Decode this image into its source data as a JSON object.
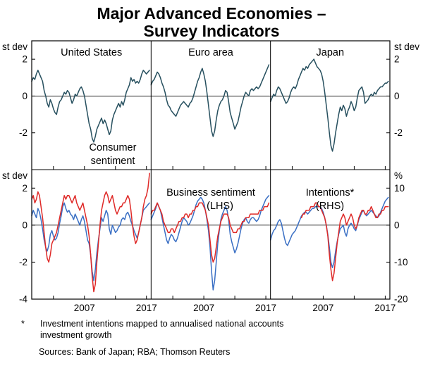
{
  "title": {
    "line1": "Major Advanced Economies –",
    "line2": "Survey Indicators"
  },
  "footnote": {
    "marker": "*",
    "line1": "Investment intentions mapped to annualised national accounts",
    "line2": "investment growth"
  },
  "sources": "Sources: Bank of Japan; RBA; Thomson Reuters",
  "chart_data": {
    "type": "line",
    "layout": {
      "rows": 2,
      "cols": 3,
      "grid": "off",
      "zero_line": "on"
    },
    "columns": [
      "United States",
      "Euro area",
      "Japan"
    ],
    "colors": {
      "consumer": "#27505f",
      "business": "#3a6fc4",
      "intentions": "#df2a28",
      "axis": "#000000"
    },
    "axes": {
      "x": {
        "range": [
          1999,
          2018.25
        ],
        "labeled_years": [
          2007,
          2017
        ],
        "minor_ticks": [
          2002,
          2007,
          2012,
          2017
        ]
      },
      "top": {
        "left_unit": "st dev",
        "right_unit": "st dev",
        "ylim": [
          -4,
          3
        ],
        "ticks": [
          2,
          0,
          -2
        ]
      },
      "bottom": {
        "left_unit": "st dev",
        "right_unit": "%",
        "ylim_left": [
          -4,
          3
        ],
        "left_ticks": [
          2,
          0,
          -2,
          -4
        ],
        "ylim_right": [
          -20,
          15
        ],
        "right_ticks": [
          10,
          0,
          -10,
          -20
        ]
      }
    },
    "annotations": {
      "consumer": {
        "line1": "Consumer",
        "line2": "sentiment"
      },
      "business": {
        "line1": "Business sentiment",
        "line2": "(LHS)"
      },
      "intentions": {
        "line1": "Intentions*",
        "line2": "(RHS)"
      }
    },
    "x_start": 1999,
    "x_step": 0.25,
    "series": [
      {
        "id": "us-consumer-sentiment",
        "panel": 0,
        "row": "top",
        "axis": "left",
        "color": "consumer",
        "values": [
          0.8,
          1.0,
          0.9,
          1.2,
          1.4,
          1.2,
          1.0,
          0.8,
          0.3,
          0.0,
          -0.4,
          -0.6,
          -0.2,
          -0.4,
          -0.7,
          -0.9,
          -1.0,
          -0.6,
          -0.3,
          -0.2,
          0.0,
          0.2,
          0.1,
          0.3,
          0.2,
          -0.1,
          -0.4,
          -0.2,
          0.1,
          0.0,
          0.2,
          0.4,
          0.5,
          0.3,
          0.0,
          -0.5,
          -1.0,
          -1.5,
          -1.8,
          -2.3,
          -2.5,
          -2.2,
          -1.8,
          -1.6,
          -1.4,
          -1.2,
          -1.5,
          -1.3,
          -1.5,
          -1.8,
          -2.1,
          -1.9,
          -1.3,
          -1.0,
          -0.8,
          -0.6,
          -0.4,
          -0.6,
          -0.3,
          -0.5,
          -0.2,
          0.2,
          0.4,
          0.6,
          1.0,
          0.8,
          0.9,
          0.7,
          0.8,
          0.7,
          0.9,
          1.2,
          1.4,
          1.3,
          1.2,
          1.3,
          1.4
        ]
      },
      {
        "id": "euro-consumer-sentiment",
        "panel": 1,
        "row": "top",
        "axis": "left",
        "color": "consumer",
        "values": [
          0.6,
          0.8,
          0.9,
          1.1,
          1.3,
          1.2,
          1.0,
          0.7,
          0.5,
          0.2,
          -0.2,
          -0.5,
          -0.6,
          -0.8,
          -0.9,
          -1.0,
          -1.1,
          -0.9,
          -0.7,
          -0.5,
          -0.4,
          -0.3,
          -0.4,
          -0.5,
          -0.6,
          -0.4,
          -0.3,
          -0.1,
          0.2,
          0.5,
          0.8,
          1.0,
          1.3,
          1.5,
          1.2,
          0.8,
          0.2,
          -0.5,
          -1.2,
          -1.9,
          -2.2,
          -1.9,
          -1.3,
          -0.8,
          -0.5,
          -0.3,
          -0.2,
          0.0,
          0.3,
          0.2,
          -0.3,
          -0.9,
          -1.2,
          -1.5,
          -1.8,
          -1.6,
          -1.4,
          -1.0,
          -0.6,
          -0.3,
          0.0,
          0.2,
          0.1,
          0.0,
          0.3,
          0.4,
          0.3,
          0.4,
          0.5,
          0.4,
          0.5,
          0.7,
          0.9,
          1.1,
          1.3,
          1.5,
          1.7
        ]
      },
      {
        "id": "japan-consumer-sentiment",
        "panel": 2,
        "row": "top",
        "axis": "left",
        "color": "consumer",
        "values": [
          -0.3,
          -0.1,
          0.1,
          0.0,
          0.3,
          0.5,
          0.4,
          0.2,
          0.0,
          -0.2,
          -0.4,
          -0.3,
          -0.1,
          0.2,
          0.4,
          0.5,
          0.4,
          0.6,
          0.9,
          1.1,
          1.3,
          1.5,
          1.4,
          1.6,
          1.5,
          1.7,
          1.8,
          1.9,
          2.0,
          1.8,
          1.6,
          1.5,
          1.4,
          1.2,
          0.8,
          0.2,
          -0.5,
          -1.2,
          -2.0,
          -2.7,
          -3.0,
          -2.6,
          -2.0,
          -1.5,
          -1.0,
          -0.6,
          -0.8,
          -0.5,
          -0.7,
          -1.1,
          -0.8,
          -0.6,
          -0.3,
          -0.5,
          -0.8,
          -0.6,
          -0.1,
          0.3,
          0.4,
          0.5,
          0.2,
          -0.4,
          -0.3,
          -0.2,
          0.0,
          0.1,
          0.0,
          0.2,
          0.1,
          0.3,
          0.4,
          0.5,
          0.5,
          0.6,
          0.7,
          0.7,
          0.8
        ]
      },
      {
        "id": "us-business-sentiment",
        "panel": 0,
        "row": "bottom",
        "axis": "left",
        "color": "business",
        "values": [
          0.5,
          0.8,
          0.6,
          0.4,
          0.9,
          0.7,
          0.3,
          -0.2,
          -0.8,
          -1.2,
          -1.4,
          -1.1,
          -0.5,
          -0.3,
          -0.6,
          -0.8,
          -0.7,
          -0.4,
          0.1,
          0.5,
          1.0,
          1.2,
          0.9,
          0.7,
          0.8,
          0.6,
          0.5,
          0.3,
          0.6,
          0.4,
          0.2,
          0.0,
          0.3,
          0.5,
          0.2,
          -0.3,
          -0.8,
          -1.0,
          -1.6,
          -2.5,
          -3.0,
          -2.4,
          -1.5,
          -0.8,
          -0.2,
          0.4,
          0.2,
          0.5,
          0.8,
          0.6,
          -0.2,
          -0.5,
          0.0,
          -0.2,
          -0.4,
          -0.3,
          -0.1,
          0.0,
          0.3,
          0.4,
          0.3,
          0.6,
          0.7,
          0.5,
          0.2,
          0.0,
          -0.3,
          -0.5,
          -0.7,
          -0.4,
          0.0,
          0.4,
          0.8,
          0.9,
          1.0,
          1.1,
          1.2
        ]
      },
      {
        "id": "us-investment-intentions",
        "panel": 0,
        "row": "bottom",
        "axis": "right",
        "color": "intentions",
        "values": [
          7,
          8,
          6,
          7,
          9,
          8,
          5,
          2,
          -2,
          -6,
          -9,
          -10,
          -8,
          -5,
          -4,
          -3,
          -2,
          0,
          2,
          4,
          6,
          8,
          7,
          8,
          8,
          7,
          6,
          7,
          8,
          6,
          5,
          4,
          5,
          6,
          4,
          2,
          0,
          -3,
          -8,
          -14,
          -18,
          -16,
          -10,
          -5,
          0,
          4,
          6,
          8,
          9,
          8,
          6,
          7,
          8,
          6,
          4,
          3,
          4,
          5,
          5,
          6,
          6,
          7,
          8,
          7,
          4,
          0,
          -3,
          -5,
          -4,
          -2,
          0,
          2,
          5,
          7,
          8,
          10,
          14
        ]
      },
      {
        "id": "euro-business-sentiment",
        "panel": 1,
        "row": "bottom",
        "axis": "left",
        "color": "business",
        "values": [
          0.3,
          0.5,
          0.7,
          0.9,
          1.2,
          1.0,
          0.8,
          0.4,
          0.0,
          -0.4,
          -0.8,
          -1.0,
          -0.7,
          -0.5,
          -0.6,
          -0.8,
          -0.9,
          -0.7,
          -0.4,
          -0.1,
          0.2,
          0.4,
          0.3,
          0.2,
          0.0,
          0.1,
          0.3,
          0.5,
          0.8,
          1.1,
          1.3,
          1.4,
          1.5,
          1.4,
          1.2,
          0.8,
          0.3,
          -0.3,
          -1.2,
          -2.5,
          -3.5,
          -3.0,
          -2.0,
          -1.0,
          -0.3,
          0.3,
          0.6,
          0.8,
          1.0,
          0.8,
          0.3,
          -0.5,
          -0.9,
          -1.2,
          -1.5,
          -1.3,
          -1.0,
          -0.6,
          -0.2,
          0.1,
          0.3,
          0.4,
          0.2,
          0.1,
          0.3,
          0.4,
          0.4,
          0.3,
          0.2,
          0.3,
          0.5,
          0.8,
          1.0,
          1.2,
          1.4,
          1.5,
          1.6
        ]
      },
      {
        "id": "euro-investment-intentions",
        "panel": 1,
        "row": "bottom",
        "axis": "right",
        "color": "intentions",
        "values": [
          3,
          4,
          4,
          5,
          6,
          5,
          4,
          3,
          1,
          0,
          -1,
          -2,
          -2,
          -1,
          -1,
          -2,
          -1,
          0,
          1,
          1,
          2,
          2,
          3,
          3,
          2,
          3,
          3,
          4,
          4,
          5,
          5,
          6,
          6,
          6,
          5,
          4,
          2,
          0,
          -4,
          -8,
          -10,
          -9,
          -6,
          -3,
          -1,
          1,
          2,
          3,
          3,
          3,
          2,
          0,
          -1,
          -2,
          -2,
          -2,
          -1,
          -1,
          0,
          1,
          1,
          2,
          2,
          2,
          3,
          3,
          3,
          3,
          3,
          3,
          4,
          4,
          4,
          5,
          5,
          5,
          6
        ]
      },
      {
        "id": "japan-business-sentiment",
        "panel": 2,
        "row": "bottom",
        "axis": "left",
        "color": "business",
        "values": [
          -0.8,
          -0.5,
          -0.3,
          -0.2,
          0.0,
          0.2,
          0.3,
          0.1,
          -0.3,
          -0.7,
          -1.0,
          -1.1,
          -0.9,
          -0.7,
          -0.5,
          -0.4,
          -0.3,
          -0.1,
          0.1,
          0.3,
          0.5,
          0.6,
          0.7,
          0.7,
          0.6,
          0.7,
          0.8,
          0.9,
          0.9,
          1.0,
          1.0,
          1.0,
          1.0,
          0.9,
          0.7,
          0.4,
          0.0,
          -0.5,
          -1.2,
          -2.0,
          -2.3,
          -2.0,
          -1.4,
          -0.9,
          -0.5,
          -0.2,
          -0.1,
          0.0,
          -0.4,
          -0.6,
          -0.2,
          0.0,
          0.1,
          0.0,
          -0.2,
          -0.3,
          0.0,
          0.3,
          0.5,
          0.7,
          0.8,
          0.6,
          0.5,
          0.6,
          0.7,
          0.8,
          0.7,
          0.6,
          0.5,
          0.4,
          0.5,
          0.7,
          0.9,
          1.1,
          1.3,
          1.4,
          1.5
        ]
      },
      {
        "id": "japan-investment-intentions",
        "panel": 2,
        "row": "bottom",
        "axis": "right",
        "color": "intentions",
        "values": [
          null,
          null,
          null,
          null,
          null,
          null,
          null,
          null,
          null,
          null,
          null,
          null,
          null,
          null,
          null,
          null,
          null,
          null,
          null,
          null,
          2,
          3,
          3,
          4,
          4,
          4,
          5,
          5,
          5,
          6,
          6,
          5,
          5,
          4,
          3,
          2,
          0,
          -3,
          -8,
          -12,
          -15,
          -13,
          -9,
          -5,
          -2,
          1,
          2,
          3,
          2,
          0,
          1,
          2,
          3,
          2,
          0,
          -1,
          0,
          2,
          3,
          4,
          4,
          3,
          3,
          4,
          4,
          5,
          4,
          3,
          2,
          2,
          3,
          3,
          4,
          4,
          5,
          5,
          5
        ]
      }
    ]
  }
}
